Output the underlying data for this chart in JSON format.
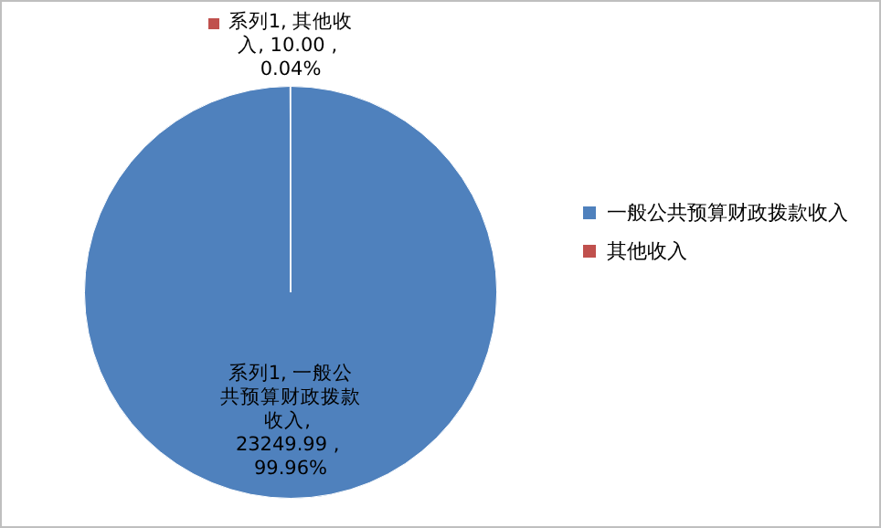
{
  "chart_data": {
    "type": "pie",
    "categories": [
      "一般公共预算财政拨款收入",
      "其他收入"
    ],
    "values": [
      23249.99,
      10.0
    ],
    "colors": [
      "#4f81bd",
      "#c0504d"
    ],
    "value_labels": [
      "系列1, 一般公共预算财政拨款收入, 23249.99 , 99.96%",
      "系列1, 其他收入, 10.00 , 0.04%"
    ],
    "legend": "right"
  }
}
